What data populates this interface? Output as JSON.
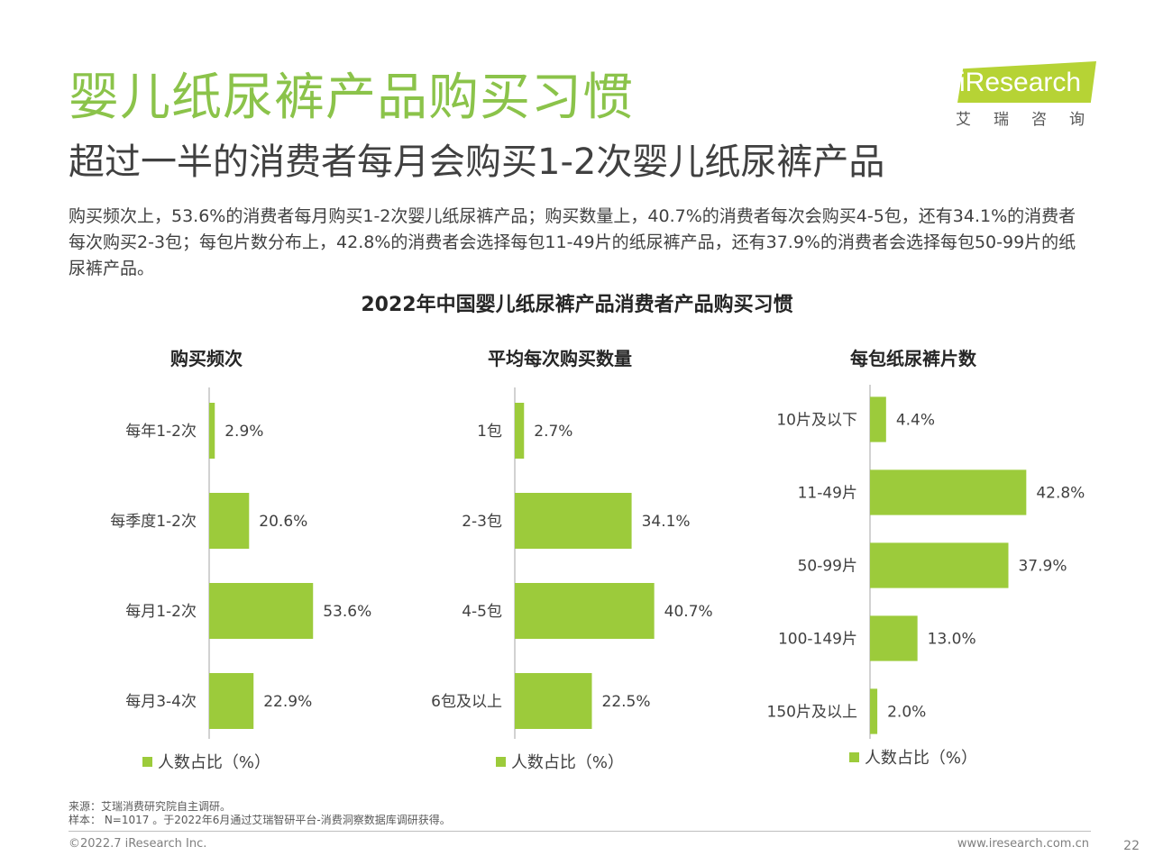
{
  "header": {
    "title": "婴儿纸尿裤产品购买习惯",
    "subtitle": "超过一半的消费者每月会购买1-2次婴儿纸尿裤产品",
    "summary": "购买频次上，53.6%的消费者每月购买1-2次婴儿纸尿裤产品；购买数量上，40.7%的消费者每次会购买4-5包，还有34.1%的消费者每次购买2-3包；每包片数分布上，42.8%的消费者会选择每包11-49片的纸尿裤产品，还有37.9%的消费者会选择每包50-99片的纸尿裤产品。"
  },
  "logo": {
    "name": "iResearch",
    "cn": "艾瑞咨询",
    "color": "#b6d335"
  },
  "main_chart_title": "2022年中国婴儿纸尿裤产品消费者产品购买习惯",
  "chart_data": [
    {
      "type": "bar",
      "orientation": "horizontal",
      "title": "购买频次",
      "categories": [
        "每年1-2次",
        "每季度1-2次",
        "每月1-2次",
        "每月3-4次"
      ],
      "values": [
        2.9,
        20.6,
        53.6,
        22.9
      ],
      "data_labels": [
        "2.9%",
        "20.6%",
        "53.6%",
        "22.9%"
      ],
      "series": [
        {
          "name": "人数占比（%）",
          "values": [
            2.9,
            20.6,
            53.6,
            22.9
          ]
        }
      ],
      "legend": "bottom",
      "grid": false,
      "color": "#9ccb3b"
    },
    {
      "type": "bar",
      "orientation": "horizontal",
      "title": "平均每次购买数量",
      "categories": [
        "1包",
        "2-3包",
        "4-5包",
        "6包及以上"
      ],
      "values": [
        2.7,
        34.1,
        40.7,
        22.5
      ],
      "data_labels": [
        "2.7%",
        "34.1%",
        "40.7%",
        "22.5%"
      ],
      "series": [
        {
          "name": "人数占比（%）",
          "values": [
            2.7,
            34.1,
            40.7,
            22.5
          ]
        }
      ],
      "legend": "bottom",
      "grid": false,
      "color": "#9ccb3b"
    },
    {
      "type": "bar",
      "orientation": "horizontal",
      "title": "每包纸尿裤片数",
      "categories": [
        "10片及以下",
        "11-49片",
        "50-99片",
        "100-149片",
        "150片及以上"
      ],
      "values": [
        4.4,
        42.8,
        37.9,
        13.0,
        2.0
      ],
      "data_labels": [
        "4.4%",
        "42.8%",
        "37.9%",
        "13.0%",
        "2.0%"
      ],
      "series": [
        {
          "name": "人数占比（%）",
          "values": [
            4.4,
            42.8,
            37.9,
            13.0,
            2.0
          ]
        }
      ],
      "legend": "bottom",
      "grid": false,
      "color": "#9ccb3b"
    }
  ],
  "footer": {
    "source": "来源：艾瑞消费研究院自主调研。",
    "sample": "样本： N=1017 。于2022年6月通过艾瑞智研平台-消费洞察数据库调研获得。",
    "copyright": "©2022.7 iResearch Inc.",
    "website": "www.iresearch.com.cn",
    "page_number": "22"
  }
}
